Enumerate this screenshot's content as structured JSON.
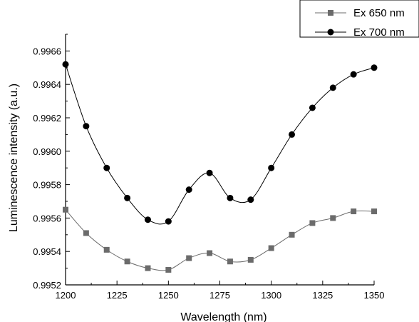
{
  "chart_data": {
    "type": "line",
    "xlabel": "Wavelength (nm)",
    "ylabel": "Luminescence intensity (a.u.)",
    "xlim": [
      1200,
      1350
    ],
    "ylim": [
      0.9952,
      0.9967
    ],
    "x_ticks": [
      1200,
      1225,
      1250,
      1275,
      1300,
      1325,
      1350
    ],
    "x_tick_labels": [
      "1200",
      "1225",
      "1250",
      "1275",
      "1300",
      "1325",
      "1350"
    ],
    "y_ticks": [
      0.9952,
      0.9954,
      0.9956,
      0.9958,
      0.996,
      0.9962,
      0.9964,
      0.9966
    ],
    "y_tick_labels": [
      "0.9952",
      "0.9954",
      "0.9956",
      "0.9958",
      "0.9960",
      "0.9962",
      "0.9964",
      "0.9966"
    ],
    "grid": false,
    "legend_position": "top-right",
    "x": [
      1200,
      1210,
      1220,
      1230,
      1240,
      1250,
      1260,
      1270,
      1280,
      1290,
      1300,
      1310,
      1320,
      1330,
      1340,
      1350
    ],
    "series": [
      {
        "name": "Ex 650 nm",
        "marker": "square",
        "color": "#6b6b6b",
        "values": [
          0.99565,
          0.99551,
          0.99541,
          0.99534,
          0.9953,
          0.99529,
          0.99536,
          0.99539,
          0.99534,
          0.99535,
          0.99542,
          0.9955,
          0.99557,
          0.9956,
          0.99564,
          0.99564
        ]
      },
      {
        "name": "Ex 700 nm",
        "marker": "circle",
        "color": "#000000",
        "values": [
          0.99652,
          0.99615,
          0.9959,
          0.99572,
          0.99559,
          0.99558,
          0.99577,
          0.99587,
          0.99572,
          0.99571,
          0.9959,
          0.9961,
          0.99626,
          0.99638,
          0.99646,
          0.9965
        ]
      }
    ]
  }
}
